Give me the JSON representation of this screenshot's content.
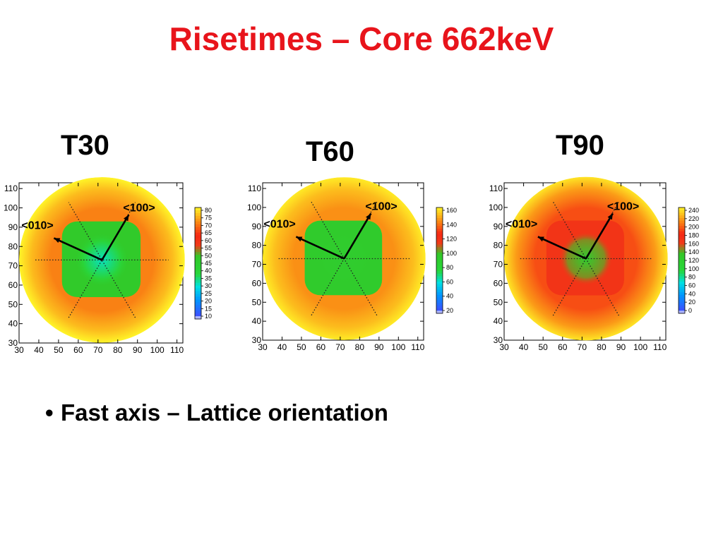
{
  "slide": {
    "title": "Risetimes – Core 662keV",
    "bullet": "Fast axis – Lattice orientation"
  },
  "chart_data": [
    {
      "type": "heatmap",
      "title": "T30",
      "x_ticks": [
        30,
        40,
        50,
        60,
        70,
        80,
        90,
        100,
        110
      ],
      "y_ticks": [
        30,
        40,
        50,
        60,
        70,
        80,
        90,
        100,
        110
      ],
      "xlim": [
        30,
        113
      ],
      "ylim": [
        30,
        113
      ],
      "center": [
        72,
        73
      ],
      "rings": {
        "inner_radius": 25,
        "outer_radius": 42
      },
      "levels": {
        "center": 32,
        "inner": 48,
        "outer": 70,
        "edge": 80
      },
      "colorbar": {
        "ticks": [
          80,
          75,
          70,
          65,
          60,
          55,
          50,
          45,
          40,
          35,
          30,
          25,
          20,
          15,
          10
        ],
        "min": 10,
        "max": 80
      },
      "annotations": [
        "<100>",
        "<010>"
      ]
    },
    {
      "type": "heatmap",
      "title": "T60",
      "x_ticks": [
        30,
        40,
        50,
        60,
        70,
        80,
        90,
        100,
        110
      ],
      "y_ticks": [
        30,
        40,
        50,
        60,
        70,
        80,
        90,
        100,
        110
      ],
      "xlim": [
        30,
        113
      ],
      "ylim": [
        30,
        113
      ],
      "center": [
        72,
        73
      ],
      "rings": {
        "inner_radius": 25,
        "outer_radius": 42
      },
      "levels": {
        "center": 92,
        "inner": 95,
        "outer": 150,
        "edge": 168
      },
      "colorbar": {
        "ticks": [
          160,
          140,
          120,
          100,
          80,
          60,
          40,
          20
        ],
        "min": 10,
        "max": 170
      },
      "annotations": [
        "<100>",
        "<010>"
      ]
    },
    {
      "type": "heatmap",
      "title": "T90",
      "x_ticks": [
        30,
        40,
        50,
        60,
        70,
        80,
        90,
        100,
        110
      ],
      "y_ticks": [
        30,
        40,
        50,
        60,
        70,
        80,
        90,
        100,
        110
      ],
      "xlim": [
        30,
        113
      ],
      "ylim": [
        30,
        113
      ],
      "center": [
        72,
        73
      ],
      "rings": {
        "inner_radius": 25,
        "outer_radius": 42
      },
      "levels": {
        "center": 125,
        "inner": 170,
        "outer": 195,
        "edge": 240
      },
      "colorbar": {
        "ticks": [
          240,
          220,
          200,
          180,
          160,
          140,
          120,
          100,
          80,
          60,
          40,
          20,
          0
        ],
        "min": 0,
        "max": 245
      },
      "annotations": [
        "<100>",
        "<010>"
      ]
    }
  ]
}
